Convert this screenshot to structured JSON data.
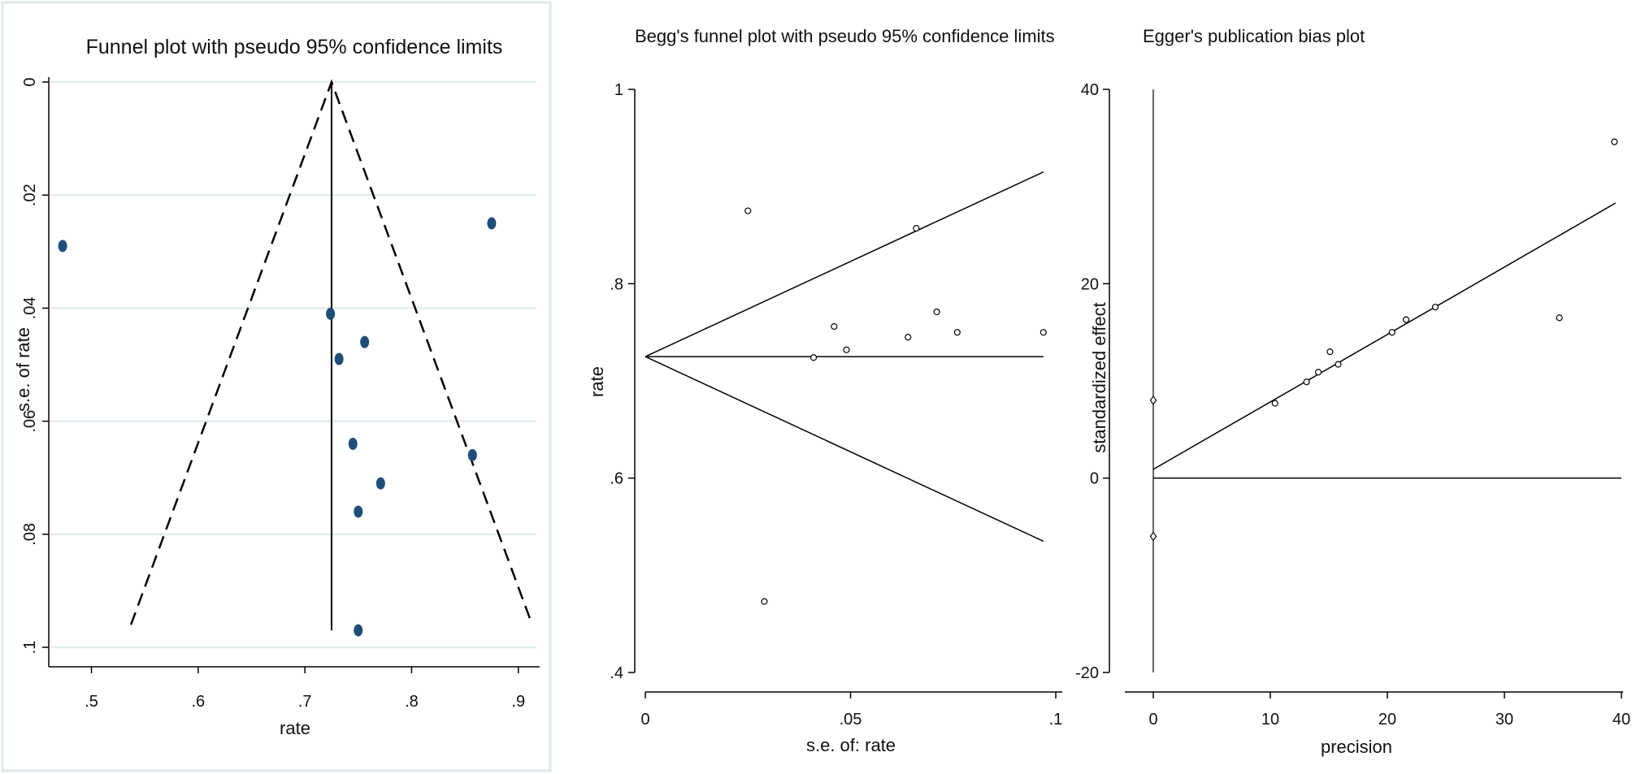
{
  "chart_data": [
    {
      "type": "scatter",
      "title": "Funnel plot with pseudo 95% confidence limits",
      "xlabel": "rate",
      "ylabel": "s.e. of rate",
      "xlim": [
        0.46,
        0.92
      ],
      "ylim": [
        0,
        0.1
      ],
      "y_reversed": true,
      "xticks": [
        ".5",
        ".6",
        ".7",
        ".8",
        ".9"
      ],
      "xtick_values": [
        0.5,
        0.6,
        0.7,
        0.8,
        0.9
      ],
      "yticks": [
        "0",
        ".02",
        ".04",
        ".06",
        ".08",
        ".1"
      ],
      "ytick_values": [
        0,
        0.02,
        0.04,
        0.06,
        0.08,
        0.1
      ],
      "grid": true,
      "pooled_estimate": 0.725,
      "line_se_max": 0.097,
      "ci_limits": {
        "top": [
          0.725,
          0
        ],
        "bottom_left": [
          0.537,
          0.096
        ],
        "bottom_right": [
          0.913,
          0.096
        ]
      },
      "points": [
        {
          "x": 0.473,
          "y": 0.029
        },
        {
          "x": 0.875,
          "y": 0.025
        },
        {
          "x": 0.724,
          "y": 0.041
        },
        {
          "x": 0.756,
          "y": 0.046
        },
        {
          "x": 0.732,
          "y": 0.049
        },
        {
          "x": 0.745,
          "y": 0.064
        },
        {
          "x": 0.857,
          "y": 0.066
        },
        {
          "x": 0.771,
          "y": 0.071
        },
        {
          "x": 0.75,
          "y": 0.076
        },
        {
          "x": 0.75,
          "y": 0.097
        }
      ],
      "colors": {
        "point": "#1f4e79",
        "grid": "#e2ecec",
        "line": "#000000"
      }
    },
    {
      "type": "scatter",
      "title": "Begg's funnel plot with pseudo 95% confidence limits",
      "xlabel": "s.e. of: rate",
      "ylabel": "rate",
      "xlim": [
        0,
        0.1
      ],
      "ylim": [
        0.4,
        1
      ],
      "xticks": [
        "0",
        ".05",
        ".1"
      ],
      "xtick_values": [
        0,
        0.05,
        0.1
      ],
      "yticks": [
        ".4",
        ".6",
        ".8",
        "1"
      ],
      "ytick_values": [
        0.4,
        0.6,
        0.8,
        1
      ],
      "grid": false,
      "pooled_estimate": 0.725,
      "upper_limit": [
        [
          0,
          0.725
        ],
        [
          0.097,
          0.915
        ]
      ],
      "lower_limit": [
        [
          0,
          0.725
        ],
        [
          0.097,
          0.535
        ]
      ],
      "points": [
        {
          "x": 0.025,
          "y": 0.875
        },
        {
          "x": 0.029,
          "y": 0.473
        },
        {
          "x": 0.041,
          "y": 0.724
        },
        {
          "x": 0.046,
          "y": 0.756
        },
        {
          "x": 0.049,
          "y": 0.732
        },
        {
          "x": 0.064,
          "y": 0.745
        },
        {
          "x": 0.066,
          "y": 0.857
        },
        {
          "x": 0.071,
          "y": 0.771
        },
        {
          "x": 0.076,
          "y": 0.75
        },
        {
          "x": 0.097,
          "y": 0.75
        }
      ]
    },
    {
      "type": "scatter",
      "title": "Egger's publication bias plot",
      "xlabel": "precision",
      "ylabel": "standardized effect",
      "xlim": [
        0,
        40
      ],
      "ylim": [
        -20,
        40
      ],
      "xticks": [
        "0",
        "10",
        "20",
        "30",
        "40"
      ],
      "xtick_values": [
        0,
        10,
        20,
        30,
        40
      ],
      "yticks": [
        "-20",
        "0",
        "20",
        "40"
      ],
      "ytick_values": [
        -20,
        0,
        20,
        40
      ],
      "grid": false,
      "regression_line": [
        [
          0,
          0.9
        ],
        [
          39.5,
          28.3
        ]
      ],
      "zero_line": [
        [
          0,
          0
        ],
        [
          40,
          0
        ]
      ],
      "ci_markers": [
        {
          "x": 0,
          "y": 8.0
        },
        {
          "x": 0,
          "y": -6.0
        }
      ],
      "points": [
        {
          "x": 10.4,
          "y": 7.7
        },
        {
          "x": 13.1,
          "y": 9.9
        },
        {
          "x": 14.1,
          "y": 10.9
        },
        {
          "x": 15.1,
          "y": 13.0
        },
        {
          "x": 15.8,
          "y": 11.7
        },
        {
          "x": 20.4,
          "y": 15.0
        },
        {
          "x": 21.6,
          "y": 16.3
        },
        {
          "x": 24.1,
          "y": 17.6
        },
        {
          "x": 34.7,
          "y": 16.5
        },
        {
          "x": 39.4,
          "y": 34.6
        }
      ]
    }
  ]
}
